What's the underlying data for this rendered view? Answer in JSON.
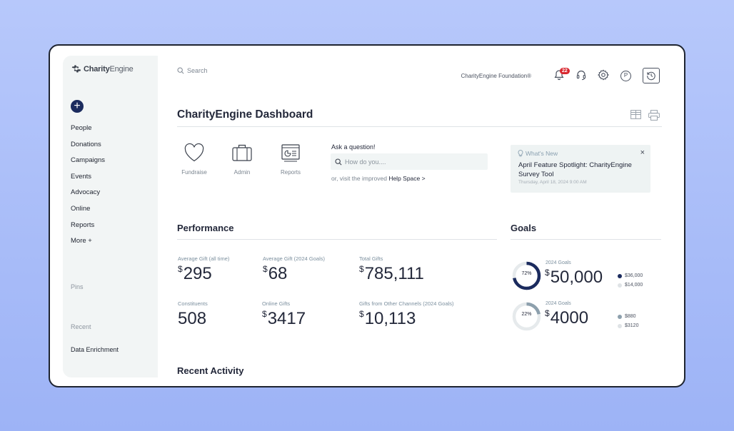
{
  "brand": {
    "logo_bold": "Charity",
    "logo_light": "Engine"
  },
  "sidebar": {
    "add_label": "+",
    "items": [
      {
        "label": "People"
      },
      {
        "label": "Donations"
      },
      {
        "label": "Campaigns"
      },
      {
        "label": "Events"
      },
      {
        "label": "Advocacy"
      },
      {
        "label": "Online"
      },
      {
        "label": "Reports"
      },
      {
        "label": "More +"
      }
    ],
    "pins_label": "Pins",
    "recent_label": "Recent",
    "recent_items": [
      {
        "label": "Data Enrichment"
      }
    ]
  },
  "header": {
    "search_label": "Search",
    "org_name": "CharityEngine Foundation®",
    "notification_count": "22"
  },
  "page": {
    "title": "CharityEngine Dashboard"
  },
  "quick_links": [
    {
      "label": "Fundraise",
      "icon": "heart-icon"
    },
    {
      "label": "Admin",
      "icon": "briefcase-icon"
    },
    {
      "label": "Reports",
      "icon": "report-icon"
    }
  ],
  "ask": {
    "label": "Ask a question!",
    "placeholder": "How do you....",
    "help_prefix": "or, visit the improved ",
    "help_link": "Help Space >"
  },
  "whats_new": {
    "heading": "What's New",
    "close": "×",
    "title": "April Feature Spotlight: CharityEngine Survey Tool",
    "date": "Thursday, April 18, 2024 9:00 AM"
  },
  "performance": {
    "title": "Performance",
    "metrics": [
      {
        "label": "Average Gift (all time)",
        "currency": "$",
        "value": "295"
      },
      {
        "label": "Average Gift (2024 Goals)",
        "currency": "$",
        "value": "68"
      },
      {
        "label": "Total Gifts",
        "currency": "$",
        "value": "785,111"
      },
      {
        "label": "Constituents",
        "currency": "",
        "value": "508"
      },
      {
        "label": "Online Gifts",
        "currency": "$",
        "value": "3417"
      },
      {
        "label": "Gifts from Other Channels (2024 Goals)",
        "currency": "$",
        "value": "10,113"
      }
    ]
  },
  "goals": {
    "title": "Goals",
    "items": [
      {
        "percent": 72,
        "percent_label": "72%",
        "label": "2024 Goals",
        "currency": "$",
        "value": "50,000",
        "color": "#1b2b5e",
        "legend": [
          {
            "text": "$36,000",
            "color": "#1b2b5e"
          },
          {
            "text": "$14,000",
            "color": "#dfe3e6"
          }
        ]
      },
      {
        "percent": 22,
        "percent_label": "22%",
        "label": "2024 Goals",
        "currency": "$",
        "value": "4000",
        "color": "#8da0ad",
        "legend": [
          {
            "text": "$880",
            "color": "#8da0ad"
          },
          {
            "text": "$3120",
            "color": "#dfe3e6"
          }
        ]
      }
    ]
  },
  "recent_activity": {
    "title": "Recent Activity"
  },
  "colors": {
    "navy": "#1b2b5e",
    "badge_red": "#d8262e",
    "panel_bg": "#f2f5f5"
  }
}
